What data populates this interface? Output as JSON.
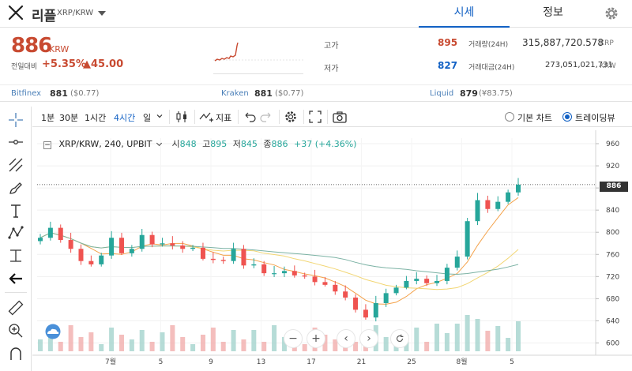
{
  "header": {
    "coin_name": "리플",
    "pair": "XRP/KRW",
    "tabs": [
      {
        "label": "시세"
      },
      {
        "label": "정보"
      }
    ]
  },
  "summary": {
    "price": "886",
    "currency": "KRW",
    "change_label": "전일대비",
    "change_pct": "+5.35%",
    "change_abs": "▲45.00",
    "high_label": "고가",
    "high_value": "895",
    "low_label": "저가",
    "low_value": "827",
    "volume_label": "거래량(24H)",
    "volume_value": "315,887,720.578",
    "volume_unit": "XRP",
    "turnover_label": "거래대금(24H)",
    "turnover_value": "273,051,021,731",
    "turnover_unit": "KRW"
  },
  "exchanges": [
    {
      "name": "Bitfinex",
      "price": "881",
      "usd": "($0.77)"
    },
    {
      "name": "Kraken",
      "price": "881",
      "usd": "($0.77)"
    },
    {
      "name": "Liquid",
      "price": "879",
      "usd": "(¥83.75)"
    }
  ],
  "toolbar": {
    "intervals": [
      "1분",
      "30분",
      "1시간",
      "4시간",
      "일"
    ],
    "indicator_label": "지표",
    "basic_chart_label": "기본 차트",
    "tradingview_label": "트레이딩뷰"
  },
  "legend": {
    "symbol": "XRP/KRW, 240, UPBIT",
    "open_label": "시",
    "open": "848",
    "high_label": "고",
    "high": "895",
    "low_label": "저",
    "low": "845",
    "close_label": "종",
    "close": "886",
    "change": "+37 (+4.36%)"
  },
  "colors": {
    "up": "#c84a31",
    "down": "#1261c4",
    "candle_up": "#26a69a",
    "candle_down": "#ef5350",
    "accent": "#1261c4"
  },
  "chart_data": {
    "type": "line",
    "title": "",
    "xlabel": "",
    "ylabel": "",
    "ylim": [
      585,
      970
    ],
    "y_ticks": [
      "960",
      "920",
      "880",
      "840",
      "800",
      "760",
      "720",
      "680",
      "640",
      "600"
    ],
    "x_tick_labels": [
      "7월",
      "5",
      "9",
      "13",
      "17",
      "21",
      "25",
      "8월",
      "5"
    ],
    "current_price_label": "886",
    "series": [
      {
        "values": [
          790,
          808,
          786,
          770,
          748,
          742,
          758,
          790,
          762,
          770,
          795,
          778,
          780,
          776,
          770,
          772,
          752,
          750,
          748,
          770,
          740,
          742,
          726,
          726,
          730,
          722,
          720,
          710,
          705,
          693,
          682,
          660,
          646,
          672,
          690,
          700,
          712,
          716,
          708,
          712,
          736,
          756,
          820,
          858,
          842,
          855,
          872,
          886
        ]
      }
    ],
    "grid": true
  }
}
